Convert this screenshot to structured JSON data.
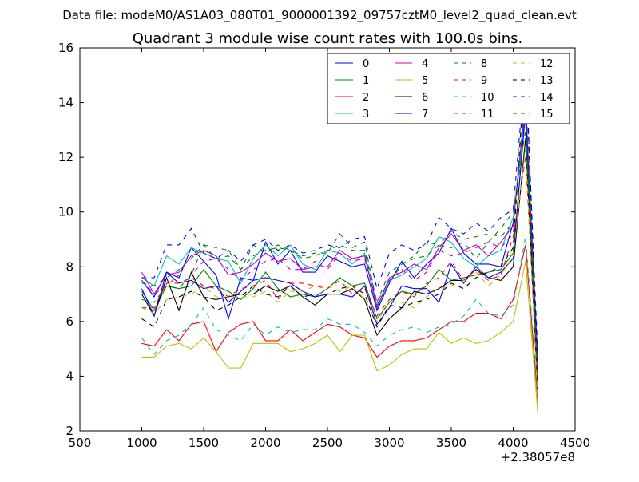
{
  "chart_data": {
    "type": "line",
    "suptitle": "Data file: modeM0/AS1A03_080T01_9000001392_09757cztM0_level2_quad_clean.evt",
    "title": "Quadrant 3 module wise count rates with 100.0s bins.",
    "xlabel": "",
    "ylabel": "",
    "x_offset_label": "+2.38057e8",
    "xlim": [
      500,
      4500
    ],
    "ylim": [
      2,
      16
    ],
    "xticks": [
      500,
      1000,
      1500,
      2000,
      2500,
      3000,
      3500,
      4000,
      4500
    ],
    "yticks": [
      2,
      4,
      6,
      8,
      10,
      12,
      14,
      16
    ],
    "grid": false,
    "legend_position": "top-right",
    "legend_columns": 4,
    "x": [
      1000,
      1100,
      1200,
      1300,
      1400,
      1500,
      1600,
      1700,
      1800,
      1900,
      2000,
      2100,
      2200,
      2300,
      2400,
      2500,
      2600,
      2700,
      2800,
      2900,
      3000,
      3100,
      3200,
      3300,
      3400,
      3500,
      3600,
      3700,
      3800,
      3900,
      4000,
      4100,
      4200
    ],
    "series": [
      {
        "name": "0",
        "color": "#0000ff",
        "dash": "solid",
        "values": [
          7.5,
          6.9,
          7.8,
          7.6,
          8.7,
          8.2,
          7.7,
          6.1,
          7.6,
          7.5,
          8.9,
          8.1,
          8.6,
          7.8,
          7.8,
          8.4,
          8.2,
          8.0,
          8.1,
          6.4,
          7.4,
          8.2,
          7.6,
          8.1,
          8.5,
          9.4,
          8.5,
          8.1,
          8.1,
          8.0,
          9.6,
          14.0,
          4.4
        ]
      },
      {
        "name": "1",
        "color": "#008000",
        "dash": "solid",
        "values": [
          7.1,
          6.4,
          7.3,
          7.2,
          7.3,
          7.9,
          7.3,
          7.1,
          6.8,
          7.2,
          7.8,
          7.2,
          6.9,
          7.0,
          6.9,
          7.2,
          7.6,
          7.3,
          7.4,
          6.1,
          6.7,
          7.1,
          7.0,
          7.3,
          7.9,
          7.5,
          7.6,
          7.7,
          7.8,
          7.9,
          8.5,
          13.6,
          3.4
        ]
      },
      {
        "name": "2",
        "color": "#ff0000",
        "dash": "solid",
        "values": [
          5.2,
          5.1,
          5.7,
          5.3,
          5.9,
          6.0,
          4.9,
          5.6,
          5.9,
          6.0,
          5.3,
          5.3,
          5.7,
          5.3,
          5.6,
          5.9,
          5.8,
          5.5,
          5.4,
          4.7,
          5.1,
          5.3,
          5.3,
          5.4,
          5.7,
          6.0,
          6.0,
          6.3,
          6.3,
          6.1,
          6.8,
          8.8,
          3.0
        ]
      },
      {
        "name": "3",
        "color": "#00bfbf",
        "dash": "solid",
        "values": [
          7.6,
          7.3,
          8.4,
          8.1,
          8.7,
          8.5,
          8.3,
          8.2,
          7.4,
          8.3,
          8.8,
          8.4,
          8.8,
          8.1,
          7.9,
          8.6,
          8.5,
          8.1,
          8.5,
          6.5,
          7.5,
          7.7,
          8.0,
          8.3,
          9.1,
          8.9,
          8.3,
          8.0,
          8.4,
          8.6,
          9.8,
          13.4,
          3.8
        ]
      },
      {
        "name": "4",
        "color": "#bf00bf",
        "dash": "solid",
        "values": [
          7.8,
          7.0,
          7.7,
          7.8,
          8.4,
          8.6,
          8.4,
          7.7,
          7.8,
          8.1,
          8.5,
          8.2,
          8.3,
          7.9,
          8.0,
          8.0,
          8.6,
          8.3,
          8.4,
          6.5,
          7.6,
          7.8,
          8.1,
          7.9,
          8.7,
          9.2,
          8.6,
          8.8,
          8.4,
          8.9,
          9.5,
          14.1,
          3.7
        ]
      },
      {
        "name": "5",
        "color": "#bfbf00",
        "dash": "solid",
        "values": [
          4.7,
          4.7,
          5.1,
          5.2,
          5.0,
          5.4,
          4.9,
          4.3,
          4.3,
          5.2,
          5.2,
          5.2,
          4.9,
          5.0,
          5.2,
          5.5,
          4.9,
          5.5,
          5.5,
          4.2,
          4.4,
          4.8,
          5.0,
          5.0,
          5.6,
          5.2,
          5.4,
          5.2,
          5.3,
          5.6,
          6.0,
          8.2,
          2.6
        ]
      },
      {
        "name": "6",
        "color": "#000000",
        "dash": "solid",
        "values": [
          7.0,
          6.2,
          7.6,
          6.4,
          7.8,
          6.9,
          6.8,
          6.9,
          7.0,
          7.0,
          7.3,
          7.1,
          7.3,
          6.9,
          6.6,
          7.0,
          7.0,
          7.2,
          6.8,
          5.5,
          6.1,
          6.5,
          7.1,
          7.0,
          7.2,
          7.5,
          7.5,
          7.9,
          7.6,
          7.5,
          8.0,
          12.7,
          3.2
        ]
      },
      {
        "name": "7",
        "color": "#0000ff",
        "dash": "solid",
        "values": [
          7.2,
          6.2,
          7.8,
          7.4,
          7.5,
          7.2,
          7.3,
          6.7,
          7.1,
          7.5,
          7.6,
          7.5,
          7.4,
          7.1,
          6.9,
          7.0,
          7.0,
          6.9,
          7.3,
          5.9,
          6.5,
          7.3,
          7.2,
          7.2,
          6.7,
          8.1,
          7.4,
          8.0,
          7.6,
          7.8,
          8.3,
          13.8,
          3.5
        ]
      },
      {
        "name": "8",
        "color": "#008000",
        "dash": "dashed",
        "values": [
          6.8,
          6.7,
          7.3,
          7.2,
          7.7,
          8.8,
          8.3,
          8.4,
          7.9,
          8.8,
          8.5,
          8.8,
          8.6,
          8.4,
          8.5,
          8.5,
          9.2,
          8.7,
          8.9,
          6.6,
          7.4,
          8.1,
          8.4,
          8.9,
          8.8,
          8.7,
          8.9,
          8.3,
          8.9,
          9.4,
          10.0,
          13.0,
          4.3
        ]
      },
      {
        "name": "9",
        "color": "#ff0000",
        "dash": "dashed",
        "values": [
          6.5,
          6.5,
          7.4,
          7.4,
          7.6,
          7.3,
          7.2,
          6.9,
          7.2,
          7.3,
          7.5,
          6.8,
          7.4,
          7.4,
          7.3,
          7.2,
          7.5,
          7.0,
          7.2,
          6.2,
          6.8,
          7.1,
          6.9,
          7.4,
          7.6,
          8.2,
          7.5,
          7.9,
          7.5,
          7.7,
          9.1,
          12.0,
          3.6
        ]
      },
      {
        "name": "10",
        "color": "#00bfbf",
        "dash": "dashed",
        "values": [
          5.4,
          4.8,
          5.3,
          5.5,
          5.9,
          6.5,
          5.7,
          5.5,
          5.3,
          5.9,
          5.5,
          5.8,
          5.6,
          5.7,
          5.7,
          6.1,
          5.9,
          5.9,
          5.6,
          5.1,
          5.5,
          5.7,
          5.8,
          5.6,
          5.8,
          5.9,
          6.2,
          6.8,
          6.3,
          6.2,
          6.6,
          9.1,
          3.2
        ]
      },
      {
        "name": "11",
        "color": "#bf00bf",
        "dash": "dashed",
        "values": [
          7.5,
          7.0,
          7.3,
          7.7,
          7.7,
          8.2,
          8.3,
          7.9,
          7.5,
          7.9,
          8.2,
          8.3,
          7.9,
          7.9,
          8.2,
          7.9,
          8.5,
          8.2,
          8.3,
          6.7,
          7.5,
          7.9,
          7.5,
          7.8,
          8.6,
          8.4,
          8.5,
          8.7,
          8.9,
          8.7,
          9.2,
          14.5,
          4.2
        ]
      },
      {
        "name": "12",
        "color": "#bfbf00",
        "dash": "dashed",
        "values": [
          6.5,
          6.3,
          6.8,
          6.9,
          7.0,
          7.3,
          6.9,
          6.9,
          6.9,
          6.9,
          7.1,
          6.7,
          7.1,
          7.1,
          7.3,
          7.3,
          7.1,
          7.3,
          6.8,
          6.0,
          6.7,
          6.7,
          6.5,
          6.9,
          7.2,
          7.3,
          7.5,
          7.8,
          7.3,
          7.7,
          8.4,
          12.4,
          3.0
        ]
      },
      {
        "name": "13",
        "color": "#000000",
        "dash": "dashed",
        "values": [
          6.1,
          5.8,
          6.8,
          6.9,
          7.1,
          6.9,
          6.4,
          6.6,
          6.9,
          7.3,
          7.0,
          6.9,
          7.3,
          6.9,
          7.0,
          7.0,
          7.2,
          7.3,
          7.0,
          5.8,
          6.6,
          6.5,
          6.7,
          6.8,
          7.0,
          7.4,
          7.2,
          7.6,
          7.8,
          8.0,
          8.7,
          15.7,
          4.0
        ]
      },
      {
        "name": "14",
        "color": "#0000ff",
        "dash": "dashed",
        "values": [
          7.6,
          7.6,
          8.8,
          8.8,
          9.4,
          8.5,
          8.3,
          8.6,
          8.2,
          8.8,
          9.0,
          8.6,
          8.8,
          8.5,
          8.6,
          8.8,
          8.7,
          9.0,
          9.1,
          7.2,
          8.5,
          8.8,
          8.6,
          8.8,
          9.8,
          9.4,
          9.2,
          9.6,
          9.3,
          9.8,
          10.1,
          15.4,
          4.6
        ]
      },
      {
        "name": "15",
        "color": "#008000",
        "dash": "dashed",
        "values": [
          7.4,
          7.3,
          7.6,
          7.9,
          8.3,
          8.8,
          8.7,
          8.6,
          7.9,
          8.4,
          8.6,
          8.7,
          8.6,
          8.3,
          8.4,
          8.6,
          8.8,
          8.6,
          8.6,
          6.7,
          7.8,
          8.1,
          8.3,
          8.4,
          8.8,
          9.3,
          9.0,
          9.1,
          9.2,
          9.1,
          9.6,
          14.3,
          3.6
        ]
      }
    ]
  }
}
